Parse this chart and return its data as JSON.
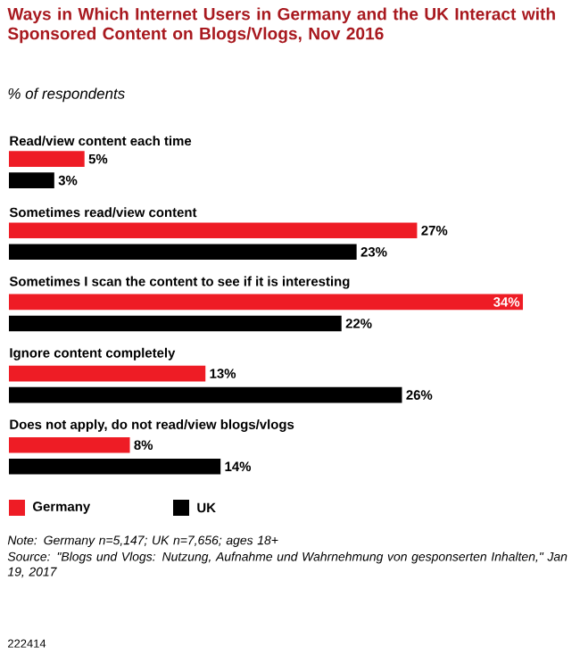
{
  "chart_data": {
    "type": "bar",
    "orientation": "horizontal",
    "title": "Ways in Which Internet Users in Germany and the UK Interact with Sponsored Content on Blogs/Vlogs, Nov 2016",
    "subtitle": "% of respondents",
    "categories": [
      "Read/view content each time",
      "Sometimes read/view content",
      "Sometimes I scan the content to see if it is interesting",
      "Ignore content completely",
      "Does not apply, do not read/view blogs/vlogs"
    ],
    "series": [
      {
        "name": "Germany",
        "color": "#ee1c25",
        "values": [
          5,
          27,
          34,
          13,
          8
        ],
        "value_labels": [
          "5%",
          "27%",
          "34%",
          "13%",
          "8%"
        ]
      },
      {
        "name": "UK",
        "color": "#000000",
        "values": [
          3,
          23,
          22,
          26,
          14
        ],
        "value_labels": [
          "3%",
          "23%",
          "22%",
          "26%",
          "14%"
        ]
      }
    ],
    "legend": "bottom left",
    "annotations": [
      "Note: Germany n=5,147; UK n=7,656; ages 18+",
      "Source: \"Blogs und Vlogs: Nutzung, Aufnahme und Wahrnehmung von gesponserten Inhalten,\" Jan 19, 2017",
      "222414"
    ]
  }
}
